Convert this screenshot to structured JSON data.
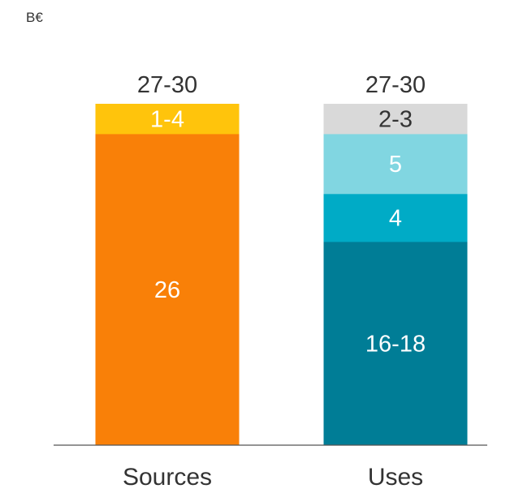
{
  "chart_data": {
    "type": "bar",
    "stacked": true,
    "unit": "B€",
    "categories": [
      "Sources",
      "Uses"
    ],
    "ylim": [
      0,
      30
    ],
    "grid": false,
    "legend": "none",
    "bars": [
      {
        "category": "Sources",
        "total_label": "27-30",
        "segments": [
          {
            "value": 26,
            "label": "26",
            "color": "#F98008",
            "label_color": "#ffffff"
          },
          {
            "value": 2.5,
            "label": "1-4",
            "color": "#FFC40C",
            "label_color": "#ffffff"
          }
        ]
      },
      {
        "category": "Uses",
        "total_label": "27-30",
        "segments": [
          {
            "value": 17,
            "label": "16-18",
            "color": "#007D96",
            "label_color": "#ffffff"
          },
          {
            "value": 4,
            "label": "4",
            "color": "#00ABC6",
            "label_color": "#ffffff"
          },
          {
            "value": 5,
            "label": "5",
            "color": "#81D6E1",
            "label_color": "#ffffff"
          },
          {
            "value": 2.5,
            "label": "2-3",
            "color": "#D9D9D9",
            "label_color": "#333333"
          }
        ]
      }
    ]
  }
}
